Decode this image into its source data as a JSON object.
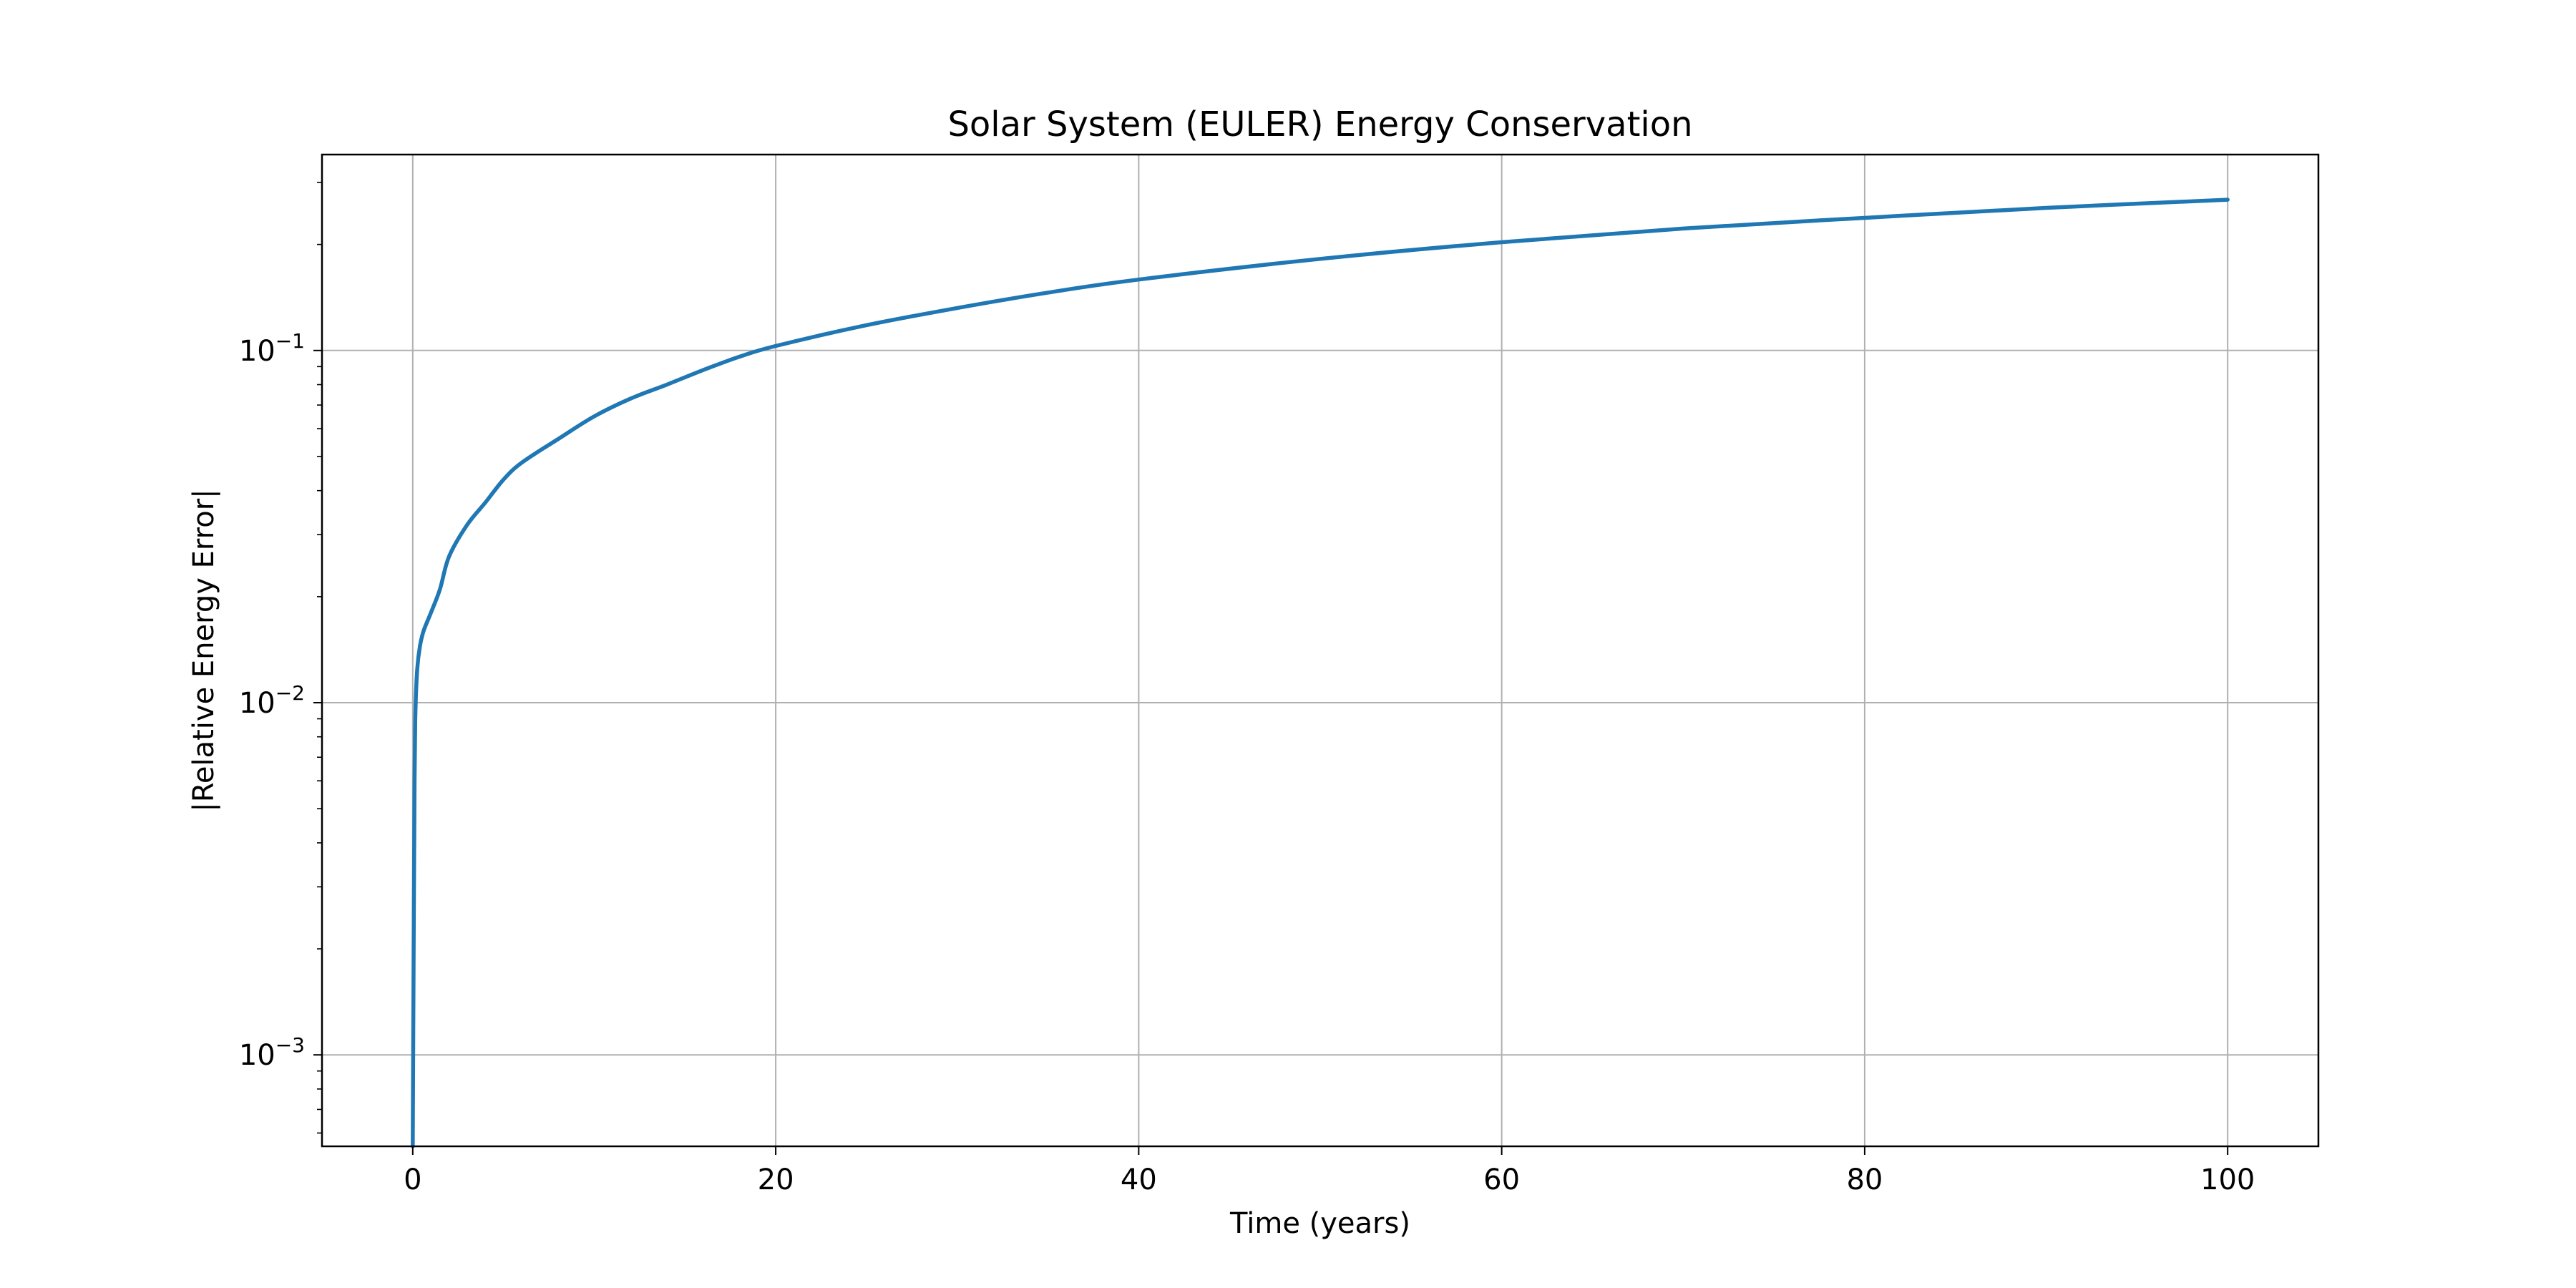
{
  "chart_data": {
    "type": "line",
    "title": "Solar System (EULER) Energy Conservation",
    "xlabel": "Time (years)",
    "ylabel": "|Relative Energy Error|",
    "xlim": [
      -5,
      105
    ],
    "ylim": [
      0.00055,
      0.36
    ],
    "yscale": "log",
    "grid": true,
    "xticks": [
      0,
      20,
      40,
      60,
      80,
      100
    ],
    "xtick_labels": [
      "0",
      "20",
      "40",
      "60",
      "80",
      "100"
    ],
    "yticks": [
      0.001,
      0.01,
      0.1
    ],
    "ytick_labels": [
      {
        "base": "10",
        "exp": "−3"
      },
      {
        "base": "10",
        "exp": "−2"
      },
      {
        "base": "10",
        "exp": "−1"
      }
    ],
    "series": [
      {
        "color": "#1f77b4",
        "x": [
          0,
          0.05,
          0.1,
          0.15,
          0.25,
          0.4,
          0.6,
          1,
          1.5,
          2,
          3,
          4,
          5,
          6,
          8,
          10,
          12,
          14,
          16,
          18,
          20,
          25,
          30,
          35,
          40,
          50,
          60,
          70,
          80,
          90,
          100
        ],
        "y": [
          0.00055,
          0.002,
          0.006,
          0.0095,
          0.0125,
          0.0145,
          0.016,
          0.018,
          0.021,
          0.026,
          0.032,
          0.037,
          0.043,
          0.048,
          0.056,
          0.065,
          0.073,
          0.08,
          0.088,
          0.096,
          0.103,
          0.118,
          0.132,
          0.146,
          0.159,
          0.182,
          0.203,
          0.222,
          0.238,
          0.254,
          0.268
        ]
      }
    ]
  }
}
